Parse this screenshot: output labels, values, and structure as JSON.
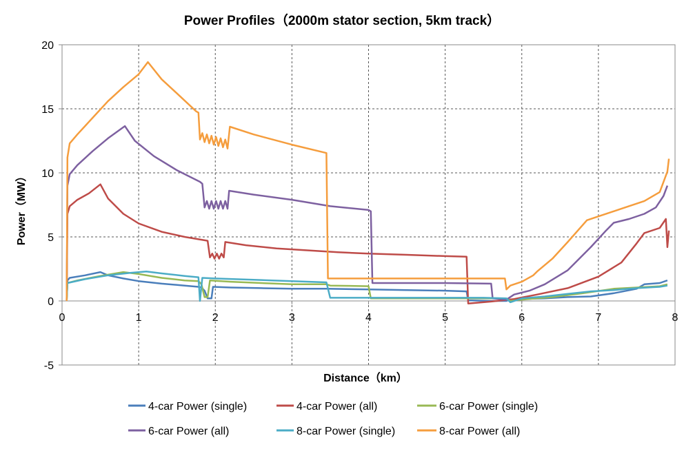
{
  "chart_data": {
    "type": "line",
    "title": "Power Profiles（2000m stator section, 5km track）",
    "xlabel": "Distance（km）",
    "ylabel": "Power（MW）",
    "xlim": [
      0,
      8
    ],
    "ylim": [
      -5,
      20
    ],
    "x_ticks": [
      0,
      1,
      2,
      3,
      4,
      5,
      6,
      7,
      8
    ],
    "y_ticks": [
      -5,
      0,
      5,
      10,
      15,
      20
    ],
    "grid": "dashed",
    "legend_position": "bottom",
    "series": [
      {
        "name": "4-car Power (single)",
        "color": "#4a7ebb",
        "points": [
          [
            0.06,
            0
          ],
          [
            0.07,
            1.6
          ],
          [
            0.1,
            1.8
          ],
          [
            0.3,
            2.0
          ],
          [
            0.5,
            2.25
          ],
          [
            0.6,
            2.0
          ],
          [
            0.8,
            1.75
          ],
          [
            1.0,
            1.55
          ],
          [
            1.3,
            1.35
          ],
          [
            1.6,
            1.2
          ],
          [
            1.78,
            1.1
          ],
          [
            1.82,
            1.05
          ],
          [
            1.86,
            0.8
          ],
          [
            1.9,
            0.2
          ],
          [
            1.95,
            0.2
          ],
          [
            1.97,
            1.1
          ],
          [
            2.2,
            1.05
          ],
          [
            2.6,
            1.0
          ],
          [
            3.0,
            0.95
          ],
          [
            3.45,
            0.95
          ],
          [
            4.0,
            0.9
          ],
          [
            4.5,
            0.85
          ],
          [
            5.0,
            0.8
          ],
          [
            5.28,
            0.75
          ],
          [
            5.3,
            0.05
          ],
          [
            5.6,
            0.0
          ],
          [
            5.8,
            0.0
          ],
          [
            5.85,
            0.1
          ],
          [
            6.0,
            0.15
          ],
          [
            6.3,
            0.2
          ],
          [
            6.6,
            0.3
          ],
          [
            6.9,
            0.35
          ],
          [
            7.2,
            0.6
          ],
          [
            7.5,
            0.95
          ],
          [
            7.6,
            1.3
          ],
          [
            7.8,
            1.4
          ],
          [
            7.9,
            1.6
          ]
        ]
      },
      {
        "name": "4-car Power (all)",
        "color": "#be4b48",
        "points": [
          [
            0.06,
            0
          ],
          [
            0.07,
            6.8
          ],
          [
            0.1,
            7.4
          ],
          [
            0.2,
            7.9
          ],
          [
            0.35,
            8.4
          ],
          [
            0.5,
            9.1
          ],
          [
            0.6,
            8.0
          ],
          [
            0.8,
            6.8
          ],
          [
            1.0,
            6.05
          ],
          [
            1.3,
            5.4
          ],
          [
            1.6,
            5.0
          ],
          [
            1.9,
            4.7
          ],
          [
            1.93,
            3.4
          ],
          [
            1.96,
            3.7
          ],
          [
            1.99,
            3.3
          ],
          [
            2.02,
            3.7
          ],
          [
            2.05,
            3.3
          ],
          [
            2.08,
            3.7
          ],
          [
            2.11,
            3.4
          ],
          [
            2.13,
            4.6
          ],
          [
            2.4,
            4.35
          ],
          [
            2.8,
            4.1
          ],
          [
            3.2,
            3.95
          ],
          [
            3.6,
            3.8
          ],
          [
            4.0,
            3.7
          ],
          [
            4.5,
            3.6
          ],
          [
            5.0,
            3.5
          ],
          [
            5.28,
            3.45
          ],
          [
            5.3,
            -0.2
          ],
          [
            5.6,
            -0.05
          ],
          [
            5.9,
            0.15
          ],
          [
            6.2,
            0.5
          ],
          [
            6.6,
            1.0
          ],
          [
            7.0,
            1.9
          ],
          [
            7.3,
            3.0
          ],
          [
            7.5,
            4.5
          ],
          [
            7.6,
            5.3
          ],
          [
            7.8,
            5.7
          ],
          [
            7.88,
            6.4
          ],
          [
            7.9,
            4.2
          ],
          [
            7.92,
            5.5
          ]
        ]
      },
      {
        "name": "6-car Power (single)",
        "color": "#98b954",
        "points": [
          [
            0.06,
            0
          ],
          [
            0.07,
            1.4
          ],
          [
            0.2,
            1.6
          ],
          [
            0.5,
            1.95
          ],
          [
            0.8,
            2.25
          ],
          [
            1.0,
            2.1
          ],
          [
            1.3,
            1.8
          ],
          [
            1.6,
            1.6
          ],
          [
            1.78,
            1.55
          ],
          [
            1.82,
            1.3
          ],
          [
            1.86,
            0.3
          ],
          [
            1.9,
            0.3
          ],
          [
            1.93,
            1.6
          ],
          [
            2.2,
            1.5
          ],
          [
            2.6,
            1.4
          ],
          [
            3.0,
            1.3
          ],
          [
            3.45,
            1.3
          ],
          [
            3.5,
            1.2
          ],
          [
            4.0,
            1.15
          ],
          [
            4.03,
            0.2
          ],
          [
            4.5,
            0.2
          ],
          [
            5.0,
            0.2
          ],
          [
            5.5,
            0.2
          ],
          [
            5.8,
            0.2
          ],
          [
            5.85,
            0.0
          ],
          [
            6.0,
            0.1
          ],
          [
            6.4,
            0.3
          ],
          [
            6.8,
            0.6
          ],
          [
            7.2,
            0.95
          ],
          [
            7.5,
            1.05
          ],
          [
            7.8,
            1.15
          ],
          [
            7.9,
            1.3
          ]
        ]
      },
      {
        "name": "6-car Power (all)",
        "color": "#7d60a0",
        "points": [
          [
            0.06,
            0
          ],
          [
            0.07,
            9.0
          ],
          [
            0.1,
            9.9
          ],
          [
            0.2,
            10.6
          ],
          [
            0.4,
            11.7
          ],
          [
            0.6,
            12.7
          ],
          [
            0.82,
            13.65
          ],
          [
            0.95,
            12.5
          ],
          [
            1.2,
            11.3
          ],
          [
            1.5,
            10.2
          ],
          [
            1.8,
            9.3
          ],
          [
            1.83,
            9.15
          ],
          [
            1.86,
            7.3
          ],
          [
            1.89,
            7.8
          ],
          [
            1.92,
            7.2
          ],
          [
            1.95,
            7.8
          ],
          [
            1.98,
            7.2
          ],
          [
            2.01,
            7.8
          ],
          [
            2.04,
            7.2
          ],
          [
            2.07,
            7.8
          ],
          [
            2.1,
            7.2
          ],
          [
            2.13,
            7.8
          ],
          [
            2.16,
            7.2
          ],
          [
            2.18,
            8.6
          ],
          [
            2.5,
            8.3
          ],
          [
            3.0,
            7.9
          ],
          [
            3.5,
            7.4
          ],
          [
            4.0,
            7.1
          ],
          [
            4.03,
            7.0
          ],
          [
            4.05,
            1.4
          ],
          [
            4.5,
            1.4
          ],
          [
            5.0,
            1.4
          ],
          [
            5.6,
            1.35
          ],
          [
            5.62,
            0.2
          ],
          [
            5.8,
            0.1
          ],
          [
            5.9,
            0.5
          ],
          [
            6.1,
            0.8
          ],
          [
            6.3,
            1.3
          ],
          [
            6.6,
            2.4
          ],
          [
            6.9,
            4.2
          ],
          [
            7.1,
            5.5
          ],
          [
            7.2,
            6.1
          ],
          [
            7.4,
            6.4
          ],
          [
            7.6,
            6.8
          ],
          [
            7.75,
            7.3
          ],
          [
            7.85,
            8.2
          ],
          [
            7.9,
            9.0
          ]
        ]
      },
      {
        "name": "8-car Power (single)",
        "color": "#4bacc6",
        "points": [
          [
            0.06,
            0
          ],
          [
            0.07,
            1.4
          ],
          [
            0.3,
            1.7
          ],
          [
            0.6,
            2.0
          ],
          [
            0.9,
            2.2
          ],
          [
            1.1,
            2.3
          ],
          [
            1.3,
            2.15
          ],
          [
            1.6,
            1.95
          ],
          [
            1.78,
            1.85
          ],
          [
            1.8,
            0.0
          ],
          [
            1.83,
            1.8
          ],
          [
            2.0,
            1.75
          ],
          [
            2.5,
            1.65
          ],
          [
            3.0,
            1.55
          ],
          [
            3.45,
            1.45
          ],
          [
            3.5,
            0.25
          ],
          [
            4.0,
            0.25
          ],
          [
            4.5,
            0.25
          ],
          [
            5.0,
            0.25
          ],
          [
            5.5,
            0.25
          ],
          [
            5.8,
            0.2
          ],
          [
            5.85,
            -0.1
          ],
          [
            6.0,
            0.2
          ],
          [
            6.3,
            0.35
          ],
          [
            6.6,
            0.55
          ],
          [
            6.9,
            0.75
          ],
          [
            7.2,
            0.85
          ],
          [
            7.5,
            1.0
          ],
          [
            7.8,
            1.1
          ],
          [
            7.9,
            1.2
          ]
        ]
      },
      {
        "name": "8-car Power (all)",
        "color": "#f59d3d",
        "points": [
          [
            0.06,
            0
          ],
          [
            0.07,
            11.2
          ],
          [
            0.1,
            12.3
          ],
          [
            0.2,
            13.0
          ],
          [
            0.4,
            14.3
          ],
          [
            0.6,
            15.6
          ],
          [
            0.8,
            16.7
          ],
          [
            1.0,
            17.7
          ],
          [
            1.12,
            18.65
          ],
          [
            1.3,
            17.3
          ],
          [
            1.5,
            16.2
          ],
          [
            1.75,
            14.8
          ],
          [
            1.78,
            14.7
          ],
          [
            1.8,
            12.6
          ],
          [
            1.83,
            13.1
          ],
          [
            1.86,
            12.4
          ],
          [
            1.89,
            13.0
          ],
          [
            1.92,
            12.3
          ],
          [
            1.95,
            12.9
          ],
          [
            1.98,
            12.2
          ],
          [
            2.01,
            12.8
          ],
          [
            2.04,
            12.1
          ],
          [
            2.07,
            12.7
          ],
          [
            2.1,
            12.0
          ],
          [
            2.13,
            12.6
          ],
          [
            2.16,
            11.9
          ],
          [
            2.19,
            13.6
          ],
          [
            2.5,
            13.0
          ],
          [
            3.0,
            12.2
          ],
          [
            3.45,
            11.55
          ],
          [
            3.47,
            1.75
          ],
          [
            4.0,
            1.75
          ],
          [
            4.5,
            1.75
          ],
          [
            5.0,
            1.75
          ],
          [
            5.5,
            1.75
          ],
          [
            5.78,
            1.75
          ],
          [
            5.8,
            0.9
          ],
          [
            5.85,
            1.2
          ],
          [
            6.0,
            1.5
          ],
          [
            6.15,
            2.0
          ],
          [
            6.2,
            2.3
          ],
          [
            6.4,
            3.3
          ],
          [
            6.6,
            4.6
          ],
          [
            6.85,
            6.3
          ],
          [
            7.0,
            6.6
          ],
          [
            7.3,
            7.2
          ],
          [
            7.6,
            7.8
          ],
          [
            7.8,
            8.5
          ],
          [
            7.9,
            10.1
          ],
          [
            7.92,
            11.1
          ]
        ]
      }
    ]
  }
}
